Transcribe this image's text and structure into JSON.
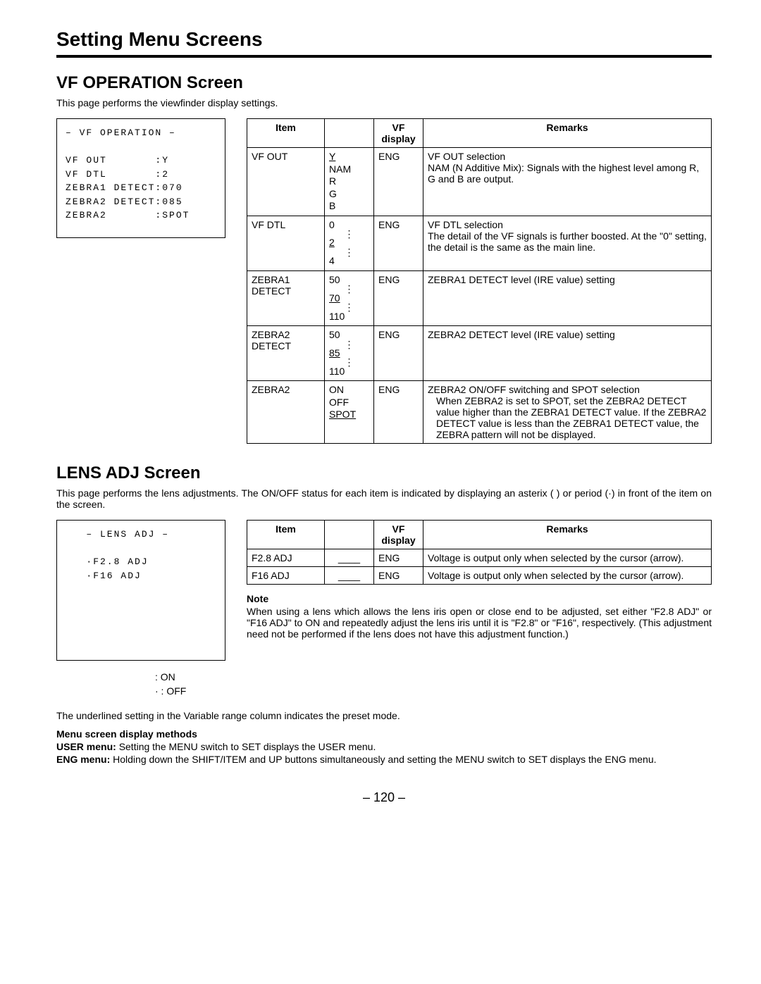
{
  "page": {
    "title": "Setting Menu Screens",
    "number": "– 120 –"
  },
  "vf": {
    "title": "VF OPERATION Screen",
    "intro": "This page performs the viewfinder display settings.",
    "screen": {
      "header": "– VF OPERATION –",
      "l1a": "VF OUT",
      "l1b": ":Y",
      "l2a": "VF DTL",
      "l2b": ":2",
      "l3a": "ZEBRA1 DETECT",
      "l3b": ":070",
      "l4a": "ZEBRA2 DETECT",
      "l4b": ":085",
      "l5a": "ZEBRA2",
      "l5b": ":SPOT"
    },
    "table": {
      "h1": "Item",
      "h2": "",
      "h3": "VF display",
      "h4": "Remarks",
      "r1": {
        "item": "VF OUT",
        "vr_u": "Y",
        "vr_rest": "NAM\nR\nG\nB",
        "vf": "ENG",
        "rem": "VF OUT selection\nNAM (N Additive Mix): Signals with the highest level among R, G and B are output."
      },
      "r2": {
        "item": "VF DTL",
        "vr_a": "0",
        "vr_u": "2",
        "vr_b": "4",
        "vf": "ENG",
        "rem": "VF DTL selection\nThe detail of the VF signals is further boosted. At the \"0\" setting, the detail is the same as the main line."
      },
      "r3": {
        "item": "ZEBRA1 DETECT",
        "vr_a": "50",
        "vr_u": "70",
        "vr_b": "110",
        "vf": "ENG",
        "rem": "ZEBRA1 DETECT level (IRE value) setting"
      },
      "r4": {
        "item": "ZEBRA2 DETECT",
        "vr_a": "50",
        "vr_u": "85",
        "vr_b": "110",
        "vf": "ENG",
        "rem": "ZEBRA2 DETECT level (IRE value) setting"
      },
      "r5": {
        "item": "ZEBRA2",
        "vr_rest": "ON\nOFF",
        "vr_u": "SPOT",
        "vf": "ENG",
        "rem_head": "ZEBRA2 ON/OFF switching and SPOT selection",
        "rem_body": "When ZEBRA2 is set to SPOT, set the ZEBRA2 DETECT value higher than the ZEBRA1 DETECT value. If the ZEBRA2 DETECT value is less than the ZEBRA1 DETECT value, the ZEBRA pattern will not be displayed."
      }
    }
  },
  "lens": {
    "title": "LENS ADJ Screen",
    "intro": "This page performs the lens adjustments. The ON/OFF status for each item is indicated by displaying an asterix (  ) or period (·) in front of the item on the screen.",
    "screen": {
      "header": "– LENS ADJ –",
      "l1": "·F2.8 ADJ",
      "l2": "·F16 ADJ"
    },
    "legend": {
      "on": ": ON",
      "off": "· : OFF"
    },
    "table": {
      "h1": "Item",
      "h2": "",
      "h3": "VF display",
      "h4": "Remarks",
      "r1": {
        "item": "F2.8 ADJ",
        "vr": "____",
        "vf": "ENG",
        "rem": "Voltage is output only when selected by the cursor (arrow)."
      },
      "r2": {
        "item": "F16 ADJ",
        "vr": "____",
        "vf": "ENG",
        "rem": "Voltage is output only when selected by the cursor (arrow)."
      }
    },
    "note": {
      "label": "Note",
      "body": "When using a lens which allows the lens iris open or close end to be adjusted, set either \"F2.8 ADJ\" or \"F16 ADJ\" to ON and repeatedly adjust the lens iris until it is \"F2.8\" or \"F16\", respectively. (This adjustment need not be performed if the lens does not have this adjustment function.)"
    }
  },
  "footer": {
    "preset": "The underlined setting in the Variable range column indicates the preset mode.",
    "methods_title": "Menu screen display methods",
    "user_label": "USER menu:",
    "user_body": "Setting the MENU switch to SET displays the USER menu.",
    "eng_label": "ENG menu:",
    "eng_body": "Holding down the SHIFT/ITEM and UP buttons simultaneously and setting the MENU switch to SET displays the ENG menu."
  }
}
